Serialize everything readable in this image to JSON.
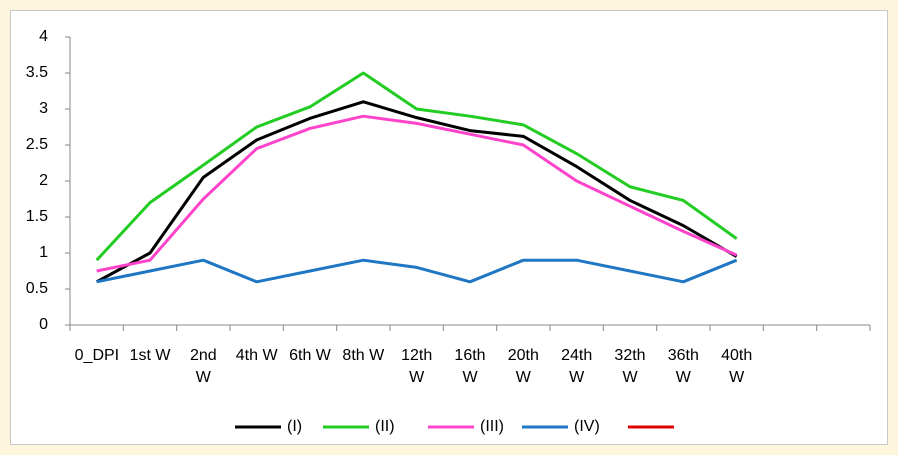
{
  "chart_data": {
    "type": "line",
    "categories": [
      "0_DPI",
      "1st W",
      "2nd W",
      "4th W",
      "6th W",
      "8th W",
      "12th W",
      "16th W",
      "20th W",
      "24th W",
      "32th W",
      "36th W",
      "40th W",
      null,
      null
    ],
    "series": [
      {
        "name": "(I)",
        "color": "#000000",
        "values": [
          0.6,
          1.0,
          2.05,
          2.57,
          2.87,
          3.1,
          2.88,
          2.7,
          2.62,
          2.2,
          1.73,
          1.38,
          0.95,
          null,
          null
        ]
      },
      {
        "name": "(II)",
        "color": "#22cc22",
        "values": [
          0.9,
          1.7,
          2.22,
          2.75,
          3.03,
          3.5,
          3.0,
          2.9,
          2.78,
          2.38,
          1.92,
          1.73,
          1.2,
          null,
          null
        ]
      },
      {
        "name": "(III)",
        "color": "#ff44cc",
        "values": [
          0.75,
          0.9,
          1.75,
          2.45,
          2.73,
          2.9,
          2.8,
          2.65,
          2.5,
          2.0,
          1.65,
          1.3,
          0.97,
          null,
          null
        ]
      },
      {
        "name": "(IV)",
        "color": "#1f77c4",
        "values": [
          0.6,
          0.75,
          0.9,
          0.6,
          0.75,
          0.9,
          0.8,
          0.6,
          0.9,
          0.9,
          0.75,
          0.6,
          0.9,
          null,
          null
        ]
      },
      {
        "color": "#e00000",
        "values": [
          null,
          null,
          null,
          null,
          null,
          null,
          null,
          null,
          null,
          null,
          null,
          null,
          null,
          null,
          null
        ]
      }
    ],
    "ylim": [
      0,
      4
    ],
    "yticks": [
      0,
      0.5,
      1,
      1.5,
      2,
      2.5,
      3,
      3.5,
      4
    ],
    "grid": false,
    "legend": "bottom"
  }
}
